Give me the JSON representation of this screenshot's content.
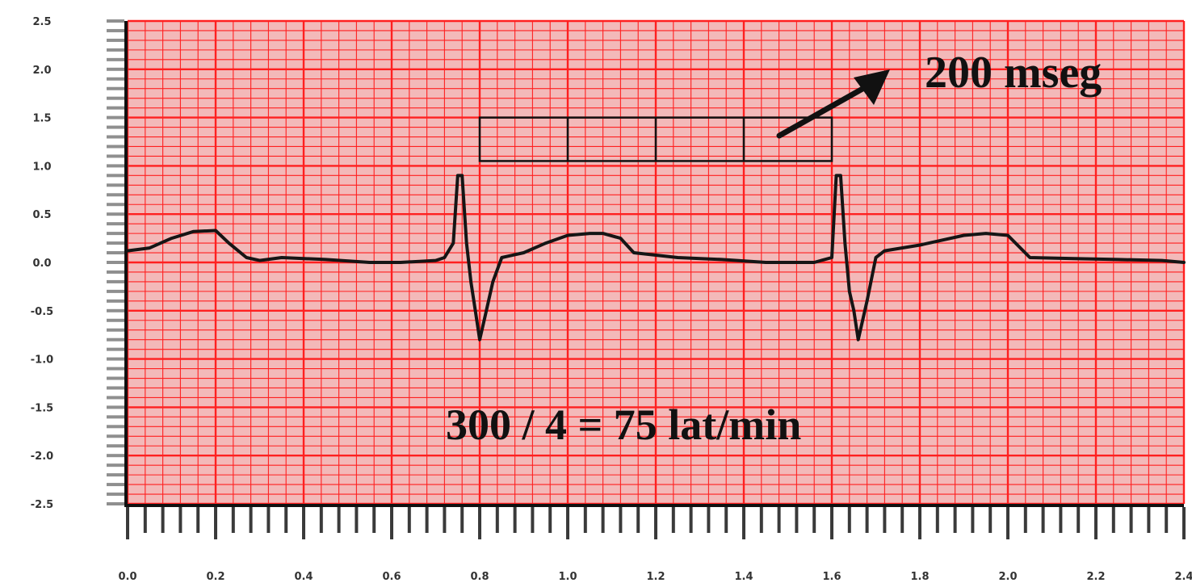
{
  "chart_data": {
    "type": "line",
    "title": "",
    "xlabel": "",
    "ylabel": "",
    "xlim": [
      0.0,
      2.4
    ],
    "ylim": [
      -2.5,
      2.5
    ],
    "grid": true,
    "x_ticks": [
      "0.0",
      "0.2",
      "0.4",
      "0.6",
      "0.8",
      "1.0",
      "1.2",
      "1.4",
      "1.6",
      "1.8",
      "2.0",
      "2.2",
      "2.4"
    ],
    "y_ticks": [
      "2.5",
      "2.0",
      "1.5",
      "1.0",
      "0.5",
      "0.0",
      "-0.5",
      "-1.0",
      "-1.5",
      "-2.0",
      "-2.5"
    ],
    "series": [
      {
        "x": [
          0.0,
          0.05,
          0.1,
          0.15,
          0.2,
          0.23,
          0.27,
          0.3,
          0.35,
          0.45,
          0.55,
          0.62,
          0.7,
          0.72,
          0.74,
          0.75,
          0.76,
          0.77,
          0.78,
          0.79,
          0.8,
          0.81,
          0.83,
          0.85,
          0.9,
          0.95,
          1.0,
          1.05,
          1.08,
          1.12,
          1.15,
          1.25,
          1.35,
          1.45,
          1.5,
          1.56,
          1.6,
          1.61,
          1.62,
          1.63,
          1.64,
          1.65,
          1.66,
          1.68,
          1.7,
          1.72,
          1.8,
          1.9,
          1.95,
          2.0,
          2.05,
          2.15,
          2.25,
          2.35,
          2.4
        ],
        "values": [
          0.12,
          0.15,
          0.25,
          0.32,
          0.33,
          0.2,
          0.05,
          0.02,
          0.05,
          0.03,
          0.0,
          0.0,
          0.02,
          0.05,
          0.2,
          0.9,
          0.9,
          0.2,
          -0.2,
          -0.5,
          -0.8,
          -0.6,
          -0.2,
          0.05,
          0.1,
          0.2,
          0.28,
          0.3,
          0.3,
          0.25,
          0.1,
          0.05,
          0.03,
          0.0,
          0.0,
          0.0,
          0.05,
          0.9,
          0.9,
          0.2,
          -0.3,
          -0.5,
          -0.8,
          -0.4,
          0.05,
          0.12,
          0.18,
          0.28,
          0.3,
          0.28,
          0.05,
          0.04,
          0.03,
          0.02,
          0.0
        ]
      }
    ],
    "measure_box": {
      "x_start": 0.8,
      "x_end": 1.6,
      "dividers": [
        1.0,
        1.2,
        1.4
      ],
      "y_bottom": 1.05,
      "y_top": 1.5
    },
    "annotations": [
      {
        "text": "200 mseg"
      },
      {
        "text": "300 / 4 = 75 lat/min"
      }
    ],
    "colors": {
      "grid": "#ff2020",
      "background": "#f3b9b9",
      "trace": "#151515"
    }
  }
}
